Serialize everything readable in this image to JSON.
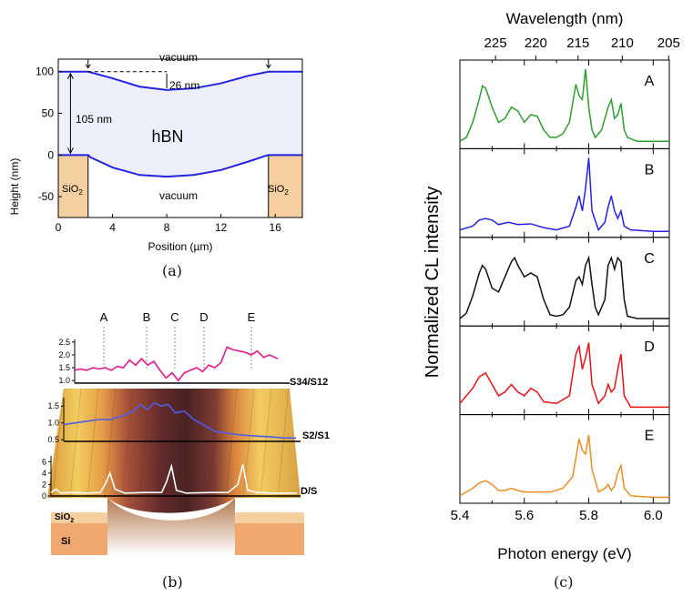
{
  "figure": {
    "captions": [
      "(a)",
      "(b)",
      "(c)"
    ]
  },
  "colors": {
    "green": "#2aa12a",
    "blue": "#2323e6",
    "black": "#111111",
    "red": "#ee1111",
    "orange": "#f28c1c",
    "magenta": "#e5198c",
    "lightblue": "#4d5ee8",
    "hbnFill": "#edf0fb",
    "sio2Fill": "#f6cfa0",
    "siFill": "#f0a86e"
  },
  "chart_data": [
    {
      "panel": "(a)",
      "type": "line",
      "xlabel": "Position (µm)",
      "ylabel": "Height (nm)",
      "xlim": [
        0,
        18
      ],
      "ylim": [
        -75,
        115
      ],
      "xticks": [
        "0",
        "4",
        "8",
        "12",
        "16"
      ],
      "yticks": [
        "100",
        "50",
        "0",
        "-50"
      ],
      "annotations": {
        "top": "vacuum",
        "bottom": "vacuum",
        "material": "hBN",
        "substrate_left": "SiO",
        "substrate_right": "SiO",
        "subscript": "2",
        "thickness": "105 nm",
        "sag": "26 nm"
      },
      "series": [
        {
          "x": [
            0,
            2.2,
            4,
            6,
            8,
            10,
            12,
            14,
            15.5,
            18
          ],
          "y": [
            100,
            100,
            92,
            82,
            78,
            80,
            86,
            95,
            100,
            100
          ]
        },
        {
          "x": [
            0,
            2.2,
            2.4,
            4,
            6,
            8,
            10,
            12,
            14,
            15.3,
            15.5,
            18
          ],
          "y": [
            0,
            0,
            -3,
            -15,
            -24,
            -26,
            -24,
            -18,
            -8,
            -1,
            0,
            0
          ]
        }
      ]
    },
    {
      "panel": "(b)",
      "type": "line",
      "markers": [
        "A",
        "B",
        "C",
        "D",
        "E"
      ],
      "substrate": {
        "sio2": "SiO",
        "sio2_sub": "2",
        "si": "Si"
      },
      "series": [
        {
          "name": "S34/S12",
          "yticks": [
            "2.5",
            "2.0",
            "1.5",
            "1.0"
          ],
          "ylim": [
            0.9,
            2.6
          ],
          "x": [
            0,
            0.03,
            0.06,
            0.09,
            0.12,
            0.15,
            0.18,
            0.21,
            0.24,
            0.27,
            0.3,
            0.33,
            0.36,
            0.39,
            0.42,
            0.45,
            0.48,
            0.51,
            0.54,
            0.57,
            0.6,
            0.63,
            0.66,
            0.69,
            0.72,
            0.75,
            0.78,
            0.81,
            0.84,
            0.87,
            0.9,
            0.93,
            0.96,
            1.0
          ],
          "y": [
            1.4,
            1.45,
            1.4,
            1.5,
            1.45,
            1.5,
            1.4,
            1.55,
            1.5,
            1.8,
            1.6,
            1.85,
            1.6,
            1.75,
            1.4,
            1.1,
            1.3,
            1.0,
            1.3,
            1.4,
            1.5,
            1.35,
            1.6,
            1.5,
            1.7,
            2.3,
            2.2,
            2.15,
            2.1,
            2.0,
            2.15,
            1.9,
            2.0,
            1.85
          ]
        },
        {
          "name": "S2/S1",
          "yticks": [
            "1.5",
            "1.0",
            "0.5"
          ],
          "ylim": [
            0.45,
            1.75
          ],
          "x": [
            0,
            0.05,
            0.1,
            0.15,
            0.2,
            0.25,
            0.3,
            0.33,
            0.36,
            0.39,
            0.42,
            0.45,
            0.48,
            0.52,
            0.56,
            0.6,
            0.65,
            0.7,
            0.75,
            0.8,
            0.85,
            0.9,
            0.95,
            1.0
          ],
          "y": [
            0.95,
            1.0,
            1.05,
            1.1,
            1.1,
            1.2,
            1.35,
            1.55,
            1.4,
            1.6,
            1.5,
            1.55,
            1.3,
            1.35,
            1.1,
            0.95,
            0.75,
            0.7,
            0.65,
            0.62,
            0.6,
            0.58,
            0.55,
            0.55
          ]
        },
        {
          "name": "D/S",
          "yticks": [
            "6",
            "4",
            "2",
            "0"
          ],
          "ylim": [
            0,
            7
          ],
          "x": [
            0,
            0.02,
            0.04,
            0.08,
            0.14,
            0.2,
            0.22,
            0.24,
            0.26,
            0.3,
            0.38,
            0.45,
            0.47,
            0.49,
            0.51,
            0.55,
            0.65,
            0.72,
            0.76,
            0.78,
            0.8,
            0.84,
            0.9,
            1.0
          ],
          "y": [
            0.6,
            1.2,
            0.5,
            0.6,
            0.5,
            0.6,
            2.0,
            4.0,
            1.2,
            0.5,
            0.6,
            0.6,
            2.5,
            5.2,
            1.0,
            0.5,
            0.6,
            0.6,
            2.0,
            5.5,
            1.0,
            0.6,
            0.5,
            0.5
          ]
        }
      ]
    },
    {
      "panel": "(c)",
      "type": "line",
      "xlabel": "Photon energy (eV)",
      "ylabel": "Normalized CL intensity",
      "x2label": "Wavelength (nm)",
      "xlim": [
        5.4,
        6.05
      ],
      "xticks": [
        "5.4",
        "5.6",
        "5.8",
        "6.0"
      ],
      "x2ticks": [
        "225",
        "220",
        "215",
        "210",
        "205"
      ],
      "series": [
        {
          "name": "A",
          "x": [
            5.4,
            5.42,
            5.44,
            5.46,
            5.47,
            5.48,
            5.5,
            5.52,
            5.54,
            5.56,
            5.58,
            5.6,
            5.62,
            5.64,
            5.66,
            5.68,
            5.7,
            5.72,
            5.74,
            5.76,
            5.77,
            5.78,
            5.79,
            5.8,
            5.81,
            5.82,
            5.84,
            5.86,
            5.87,
            5.88,
            5.89,
            5.9,
            5.91,
            5.92,
            5.95,
            6.0,
            6.05
          ],
          "y": [
            0.05,
            0.1,
            0.3,
            0.6,
            0.78,
            0.75,
            0.5,
            0.3,
            0.35,
            0.5,
            0.45,
            0.3,
            0.4,
            0.38,
            0.2,
            0.1,
            0.1,
            0.15,
            0.3,
            0.8,
            0.65,
            0.6,
            1.0,
            0.5,
            0.2,
            0.1,
            0.2,
            0.5,
            0.6,
            0.35,
            0.4,
            0.55,
            0.2,
            0.1,
            0.05,
            0.05,
            0.05
          ]
        },
        {
          "name": "B",
          "x": [
            5.4,
            5.44,
            5.46,
            5.48,
            5.5,
            5.52,
            5.55,
            5.58,
            5.62,
            5.66,
            5.7,
            5.74,
            5.76,
            5.77,
            5.78,
            5.79,
            5.8,
            5.81,
            5.83,
            5.85,
            5.86,
            5.87,
            5.88,
            5.89,
            5.9,
            5.91,
            5.93,
            6.0,
            6.05
          ],
          "y": [
            0.05,
            0.1,
            0.18,
            0.2,
            0.18,
            0.12,
            0.15,
            0.12,
            0.13,
            0.08,
            0.05,
            0.1,
            0.35,
            0.5,
            0.3,
            0.6,
            1.0,
            0.3,
            0.05,
            0.15,
            0.35,
            0.5,
            0.3,
            0.2,
            0.3,
            0.1,
            0.05,
            0.03,
            0.03
          ]
        },
        {
          "name": "C",
          "x": [
            5.4,
            5.42,
            5.44,
            5.46,
            5.47,
            5.48,
            5.5,
            5.52,
            5.54,
            5.56,
            5.57,
            5.58,
            5.6,
            5.62,
            5.64,
            5.66,
            5.68,
            5.7,
            5.72,
            5.74,
            5.76,
            5.77,
            5.78,
            5.79,
            5.8,
            5.81,
            5.82,
            5.83,
            5.85,
            5.86,
            5.87,
            5.88,
            5.89,
            5.9,
            5.91,
            5.92,
            5.95,
            6.0,
            6.05
          ],
          "y": [
            0.05,
            0.12,
            0.35,
            0.65,
            0.75,
            0.7,
            0.45,
            0.4,
            0.6,
            0.8,
            0.85,
            0.75,
            0.6,
            0.65,
            0.6,
            0.3,
            0.1,
            0.08,
            0.1,
            0.2,
            0.55,
            0.6,
            0.5,
            0.75,
            0.85,
            0.5,
            0.2,
            0.1,
            0.3,
            0.75,
            0.85,
            0.7,
            0.85,
            0.8,
            0.3,
            0.08,
            0.05,
            0.05,
            0.05
          ]
        },
        {
          "name": "D",
          "x": [
            5.4,
            5.42,
            5.44,
            5.46,
            5.48,
            5.5,
            5.52,
            5.54,
            5.56,
            5.58,
            5.6,
            5.62,
            5.64,
            5.66,
            5.7,
            5.74,
            5.76,
            5.77,
            5.78,
            5.79,
            5.8,
            5.81,
            5.83,
            5.85,
            5.86,
            5.87,
            5.88,
            5.89,
            5.9,
            5.91,
            5.93,
            6.0,
            6.05
          ],
          "y": [
            0.1,
            0.2,
            0.3,
            0.45,
            0.5,
            0.35,
            0.2,
            0.25,
            0.35,
            0.25,
            0.2,
            0.3,
            0.25,
            0.12,
            0.1,
            0.2,
            0.75,
            0.85,
            0.55,
            0.7,
            0.9,
            0.35,
            0.1,
            0.2,
            0.35,
            0.25,
            0.3,
            0.55,
            0.75,
            0.2,
            0.05,
            0.05,
            0.05
          ]
        },
        {
          "name": "E",
          "x": [
            5.4,
            5.42,
            5.44,
            5.46,
            5.48,
            5.5,
            5.52,
            5.54,
            5.56,
            5.58,
            5.6,
            5.64,
            5.68,
            5.72,
            5.75,
            5.76,
            5.77,
            5.78,
            5.79,
            5.8,
            5.81,
            5.83,
            5.85,
            5.86,
            5.87,
            5.88,
            5.89,
            5.9,
            5.91,
            5.93,
            6.0,
            6.05
          ],
          "y": [
            0.05,
            0.1,
            0.15,
            0.22,
            0.25,
            0.2,
            0.12,
            0.12,
            0.15,
            0.12,
            0.1,
            0.1,
            0.1,
            0.15,
            0.3,
            0.55,
            0.8,
            0.65,
            0.6,
            0.85,
            0.4,
            0.1,
            0.15,
            0.2,
            0.12,
            0.18,
            0.35,
            0.45,
            0.15,
            0.05,
            0.03,
            0.03
          ]
        }
      ]
    }
  ]
}
